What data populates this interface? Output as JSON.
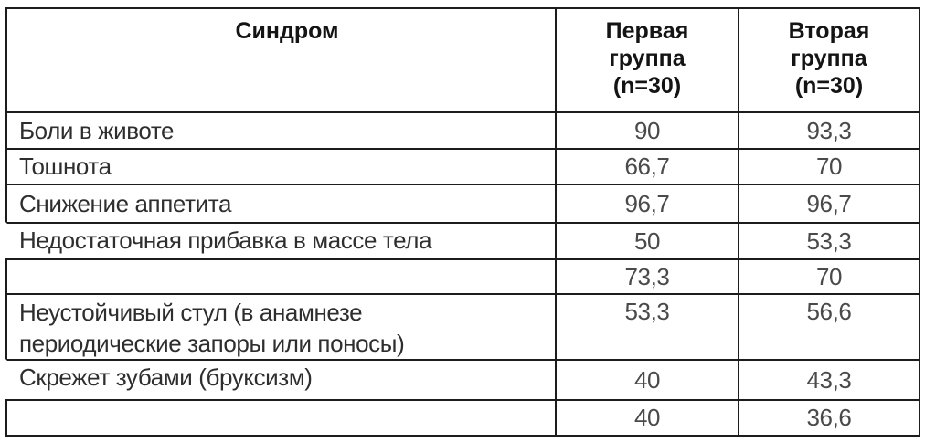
{
  "table": {
    "header": {
      "syndrome": "Синдром",
      "group1": "Первая\nгруппа\n(n=30)",
      "group2": "Вторая\nгруппа\n(n=30)"
    },
    "rows": [
      {
        "syndrome": "Боли в животе",
        "group1": "90",
        "group2": "93,3"
      },
      {
        "syndrome": "Тошнота",
        "group1": "66,7",
        "group2": "70"
      },
      {
        "syndrome": "Снижение аппетита",
        "group1": "96,7",
        "group2": "96,7"
      },
      {
        "syndrome": "Недостаточная прибавка в массе тела",
        "group1": "50",
        "group2": "53,3"
      },
      {
        "syndrome": "",
        "group1": "73,3",
        "group2": "70"
      },
      {
        "syndrome": "Неустойчивый стул (в анамнезе\nпериодические запоры или поносы)",
        "group1": "53,3",
        "group2": "56,6"
      },
      {
        "syndrome": "Скрежет зубами (бруксизм)",
        "group1": "40",
        "group2": "43,3"
      },
      {
        "syndrome": "",
        "group1": "40",
        "group2": "36,6"
      }
    ],
    "colors": {
      "border": "#1c1c1c",
      "header_text": "#141414",
      "label_text": "#2e2e2e",
      "value_text": "#4a4a4a",
      "background": "#ffffff"
    }
  }
}
